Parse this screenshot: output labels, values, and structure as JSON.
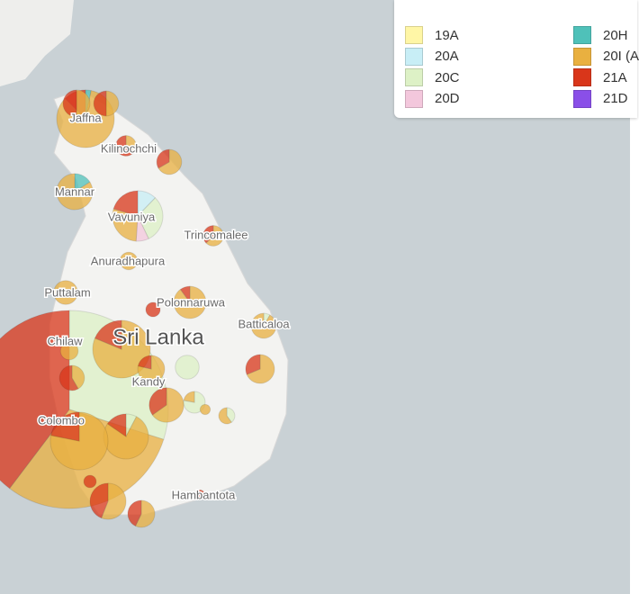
{
  "legend": {
    "items": [
      {
        "label": "19A",
        "color": "#fff6a6"
      },
      {
        "label": "20A",
        "color": "#c8eef6"
      },
      {
        "label": "20C",
        "color": "#ddf1c6"
      },
      {
        "label": "20D",
        "color": "#f3c7dc"
      },
      {
        "label": "20H",
        "color": "#4fc1b9"
      },
      {
        "label": "20I (A",
        "color": "#e9b040"
      },
      {
        "label": "21A",
        "color": "#d9361a"
      },
      {
        "label": "21D",
        "color": "#8a4fe8"
      }
    ]
  },
  "places": [
    "Jaffna",
    "Kilinochchi",
    "Mannar",
    "Vavuniya",
    "Trincomalee",
    "Anuradhapura",
    "Puttalam",
    "Polonnaruwa",
    "Batticaloa",
    "Chilaw",
    "Sri Lanka",
    "Kandy",
    "Colombo",
    "Hambantota"
  ],
  "pies": [
    {
      "values": [
        0,
        0,
        226,
        0,
        0,
        230,
        300,
        0
      ]
    },
    {
      "values": [
        0,
        0,
        0,
        0,
        2,
        54,
        8,
        0
      ]
    },
    {
      "values": [
        0,
        0,
        0,
        0,
        0,
        7,
        7,
        0
      ]
    },
    {
      "values": [
        0,
        0,
        0,
        0,
        0,
        6,
        6,
        0
      ]
    },
    {
      "values": [
        0,
        0,
        0,
        0,
        0,
        3,
        5,
        0
      ]
    },
    {
      "values": [
        0,
        0,
        0,
        0,
        0,
        8,
        4,
        0
      ]
    },
    {
      "values": [
        0,
        0,
        0,
        0,
        4,
        21,
        0,
        0
      ]
    },
    {
      "values": [
        0,
        6,
        15,
        4,
        0,
        14,
        10,
        0
      ]
    },
    {
      "values": [
        0,
        0,
        0,
        0,
        0,
        5,
        3,
        0
      ]
    },
    {
      "values": [
        0,
        0,
        0,
        0,
        0,
        6,
        0,
        0
      ]
    },
    {
      "values": [
        0,
        0,
        0,
        0,
        0,
        11,
        0,
        0
      ]
    },
    {
      "values": [
        0,
        0,
        0,
        0,
        0,
        18,
        2,
        0
      ]
    },
    {
      "values": [
        0,
        0,
        0,
        0,
        0,
        0,
        4,
        0
      ]
    },
    {
      "values": [
        0,
        0,
        1,
        0,
        0,
        11,
        0,
        0
      ]
    },
    {
      "values": [
        0,
        0,
        0,
        0,
        0,
        52,
        12,
        0
      ]
    },
    {
      "values": [
        0,
        0,
        0,
        0,
        0,
        11,
        3,
        0
      ]
    },
    {
      "values": [
        0,
        0,
        0,
        0,
        0,
        11,
        5,
        0
      ]
    },
    {
      "values": [
        0,
        0,
        0,
        0,
        0,
        15,
        8,
        0
      ]
    },
    {
      "values": [
        0,
        0,
        11,
        0,
        0,
        0,
        0,
        0
      ]
    },
    {
      "values": [
        0,
        0,
        7,
        0,
        0,
        2,
        0,
        0
      ]
    },
    {
      "values": [
        0,
        0,
        2,
        0,
        0,
        3,
        0,
        0
      ]
    },
    {
      "values": [
        0,
        0,
        3,
        0,
        0,
        30,
        6,
        0
      ]
    },
    {
      "values": [
        0,
        0,
        0,
        0,
        0,
        50,
        14,
        0
      ]
    },
    {
      "values": [
        0,
        0,
        0,
        0,
        0,
        14,
        11,
        0
      ]
    },
    {
      "values": [
        0,
        0,
        0,
        0,
        0,
        8,
        6,
        0
      ]
    },
    {
      "values": [
        0,
        0,
        0,
        0,
        0,
        0,
        2,
        0
      ]
    },
    {
      "values": [
        0,
        0,
        0,
        0,
        0,
        6,
        0,
        0
      ]
    },
    {
      "values": [
        0,
        0,
        0,
        0,
        0,
        5,
        7,
        0
      ]
    },
    {
      "values": [
        0,
        0,
        0,
        0,
        0,
        0,
        3,
        0
      ]
    },
    {
      "values": [
        0,
        0,
        0,
        0,
        0,
        2,
        0,
        0
      ]
    }
  ]
}
